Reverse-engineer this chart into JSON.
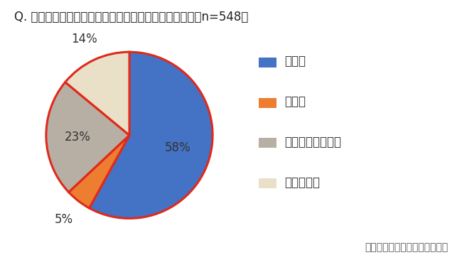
{
  "title": "Q. 今年の夏、電気代は昨年と比べて増加しましたか？（n=548）",
  "labels": [
    "増えた",
    "減った",
    "あまり変わらない",
    "わからない"
  ],
  "values": [
    58,
    5,
    23,
    14
  ],
  "colors": [
    "#4472C4",
    "#ED7D31",
    "#B8AFA4",
    "#EAE0C8"
  ],
  "wedge_edge_color": "#E0291A",
  "wedge_edge_width": 2.2,
  "pct_labels": [
    "58%",
    "5%",
    "23%",
    "14%"
  ],
  "source_text": "パナソニック「エオリア」調べ",
  "background_color": "#ffffff",
  "title_fontsize": 12,
  "legend_fontsize": 12,
  "pct_fontsize": 12,
  "source_fontsize": 10
}
